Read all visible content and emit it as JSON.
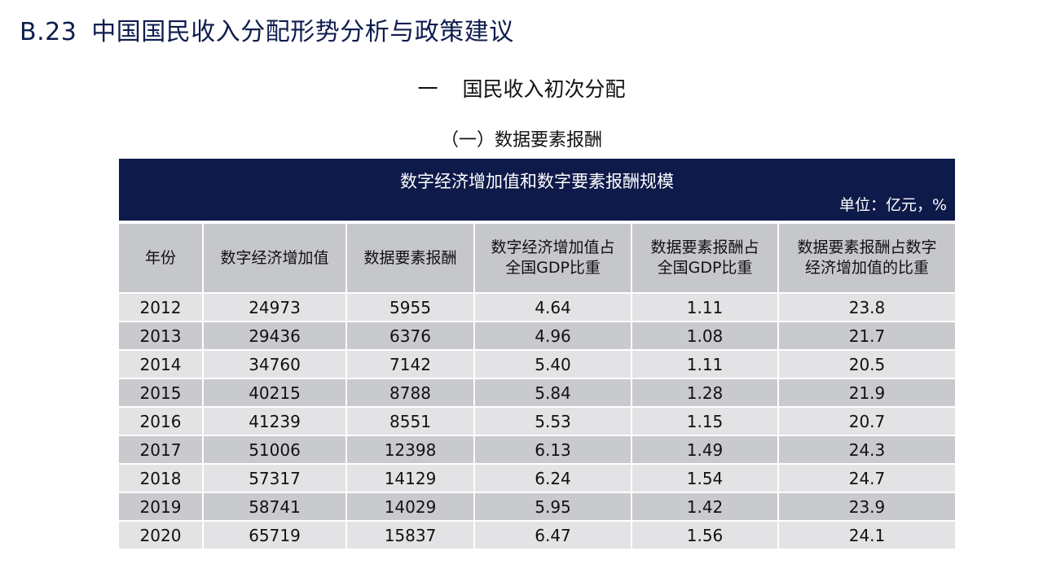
{
  "doc": {
    "code": "B.23",
    "title": "中国国民收入分配形势分析与政策建议"
  },
  "section": {
    "number": "一",
    "title": "国民收入初次分配"
  },
  "subsection": {
    "title": "（一）数据要素报酬"
  },
  "table": {
    "title": "数字经济增加值和数字要素报酬规模",
    "unit": "单位：亿元，%",
    "headers": [
      [
        "年份"
      ],
      [
        "数字经济增加值"
      ],
      [
        "数据要素报酬"
      ],
      [
        "数字经济增加值占",
        "全国GDP比重"
      ],
      [
        "数据要素报酬占",
        "全国GDP比重"
      ],
      [
        "数据要素报酬占数字",
        "经济增加值的比重"
      ]
    ],
    "rows": [
      [
        "2012",
        "24973",
        "5955",
        "4.64",
        "1.11",
        "23.8"
      ],
      [
        "2013",
        "29436",
        "6376",
        "4.96",
        "1.08",
        "21.7"
      ],
      [
        "2014",
        "34760",
        "7142",
        "5.40",
        "1.11",
        "20.5"
      ],
      [
        "2015",
        "40215",
        "8788",
        "5.84",
        "1.28",
        "21.9"
      ],
      [
        "2016",
        "41239",
        "8551",
        "5.53",
        "1.15",
        "20.7"
      ],
      [
        "2017",
        "51006",
        "12398",
        "6.13",
        "1.49",
        "24.3"
      ],
      [
        "2018",
        "57317",
        "14129",
        "6.24",
        "1.54",
        "24.7"
      ],
      [
        "2019",
        "58741",
        "14029",
        "5.95",
        "1.42",
        "23.9"
      ],
      [
        "2020",
        "65719",
        "15837",
        "6.47",
        "1.56",
        "24.1"
      ]
    ]
  },
  "colors": {
    "banner": "#0d1a4a",
    "header": "#c6c7cb",
    "row_light": "#e3e3e5",
    "row_dark": "#c9cacd"
  }
}
